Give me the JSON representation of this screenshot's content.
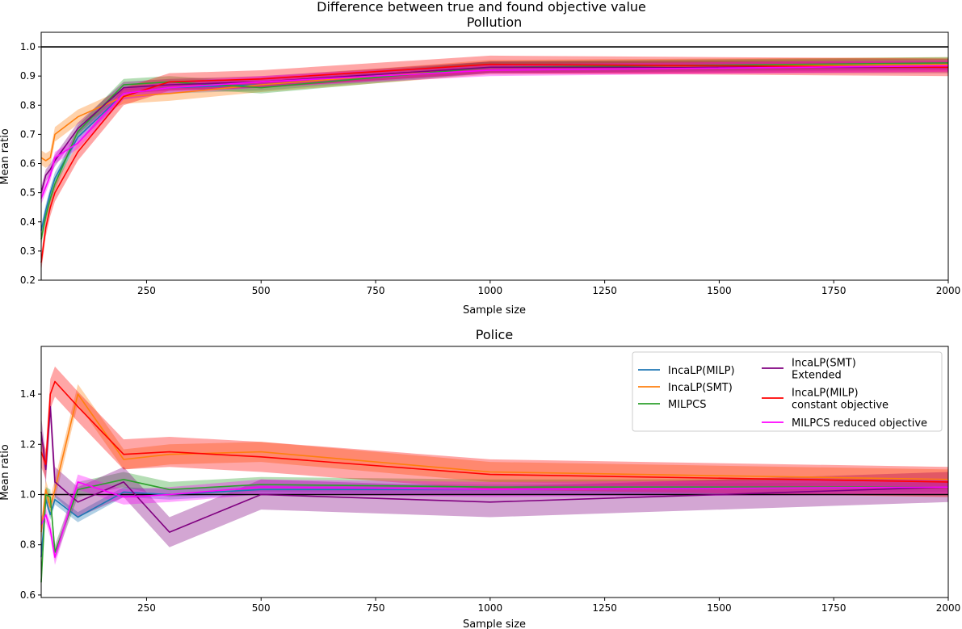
{
  "figure_title": "Difference between true and found objective value",
  "legend": {
    "entries": [
      {
        "label_lines": [
          "IncaLP(MILP)"
        ],
        "color": "#1f77b4"
      },
      {
        "label_lines": [
          "IncaLP(SMT)"
        ],
        "color": "#ff7f0e"
      },
      {
        "label_lines": [
          "MILPCS"
        ],
        "color": "#2ca02c"
      },
      {
        "label_lines": [
          "IncaLP(SMT)",
          " Extended"
        ],
        "color": "#800080"
      },
      {
        "label_lines": [
          "IncaLP(MILP)",
          " constant objective"
        ],
        "color": "#ff0000"
      },
      {
        "label_lines": [
          "MILPCS reduced objective"
        ],
        "color": "#ff00ff"
      }
    ]
  },
  "chart_data": [
    {
      "type": "line",
      "title": "Pollution",
      "xlabel": "Sample size",
      "ylabel": "Mean ratio",
      "xlim": [
        20,
        2000
      ],
      "ylim": [
        0.2,
        1.05
      ],
      "xticks": [
        250,
        500,
        750,
        1000,
        1250,
        1500,
        1750,
        2000
      ],
      "yticks": [
        0.2,
        0.3,
        0.4,
        0.5,
        0.6,
        0.7,
        0.8,
        0.9,
        1.0
      ],
      "ytick_labels": [
        "0.2",
        "0.3",
        "0.4",
        "0.5",
        "0.6",
        "0.7",
        "0.8",
        "0.9",
        "1.0"
      ],
      "reference_line": 1.0,
      "x": [
        20,
        30,
        40,
        50,
        100,
        200,
        300,
        500,
        1000,
        2000
      ],
      "series": [
        {
          "color": "#1f77b4",
          "values": [
            0.37,
            0.44,
            0.5,
            0.55,
            0.69,
            0.84,
            0.86,
            0.87,
            0.93,
            0.94
          ],
          "band": 0.02
        },
        {
          "color": "#ff7f0e",
          "values": [
            0.62,
            0.61,
            0.62,
            0.7,
            0.76,
            0.83,
            0.84,
            0.87,
            0.93,
            0.94
          ],
          "band": 0.025
        },
        {
          "color": "#2ca02c",
          "values": [
            0.34,
            0.42,
            0.48,
            0.53,
            0.71,
            0.87,
            0.88,
            0.86,
            0.93,
            0.945
          ],
          "band": 0.02
        },
        {
          "color": "#800080",
          "values": [
            0.5,
            0.56,
            0.58,
            0.61,
            0.72,
            0.86,
            0.87,
            0.88,
            0.93,
            0.93
          ],
          "band": 0.02
        },
        {
          "color": "#ff0000",
          "values": [
            0.26,
            0.38,
            0.45,
            0.5,
            0.64,
            0.83,
            0.88,
            0.89,
            0.94,
            0.93
          ],
          "band": 0.03
        },
        {
          "color": "#ff00ff",
          "values": [
            0.48,
            0.52,
            0.56,
            0.62,
            0.67,
            0.84,
            0.86,
            0.88,
            0.92,
            0.935
          ],
          "band": 0.02
        }
      ]
    },
    {
      "type": "line",
      "title": "Police",
      "xlabel": "Sample size",
      "ylabel": "Mean ratio",
      "xlim": [
        20,
        2000
      ],
      "ylim": [
        0.59,
        1.59
      ],
      "xticks": [
        250,
        500,
        750,
        1000,
        1250,
        1500,
        1750,
        2000
      ],
      "yticks": [
        0.6,
        0.8,
        1.0,
        1.2,
        1.4
      ],
      "ytick_labels": [
        "0.6",
        "0.8",
        "1.0",
        "1.2",
        "1.4"
      ],
      "reference_line": 1.0,
      "legend_position": "top-right",
      "x": [
        20,
        30,
        40,
        50,
        100,
        200,
        300,
        500,
        1000,
        2000
      ],
      "series": [
        {
          "color": "#1f77b4",
          "values": [
            0.75,
            0.98,
            0.92,
            0.98,
            0.91,
            1.01,
            1.0,
            1.02,
            1.02,
            1.03
          ],
          "band": 0.02
        },
        {
          "color": "#ff7f0e",
          "values": [
            0.85,
            1.02,
            0.95,
            1.02,
            1.4,
            1.14,
            1.16,
            1.17,
            1.09,
            1.06
          ],
          "band": 0.04
        },
        {
          "color": "#2ca02c",
          "values": [
            0.65,
            1.0,
            0.99,
            0.77,
            1.02,
            1.06,
            1.02,
            1.04,
            1.03,
            1.03
          ],
          "band": 0.03
        },
        {
          "color": "#800080",
          "values": [
            1.25,
            1.1,
            1.35,
            1.05,
            0.97,
            1.05,
            0.85,
            1.0,
            0.97,
            1.03
          ],
          "band": 0.06
        },
        {
          "color": "#ff0000",
          "values": [
            1.17,
            1.12,
            1.4,
            1.45,
            1.35,
            1.16,
            1.17,
            1.15,
            1.08,
            1.05
          ],
          "band": 0.06
        },
        {
          "color": "#ff00ff",
          "values": [
            0.88,
            0.92,
            0.86,
            0.75,
            1.05,
            0.99,
            1.0,
            1.03,
            1.02,
            1.03
          ],
          "band": 0.03
        }
      ]
    }
  ]
}
